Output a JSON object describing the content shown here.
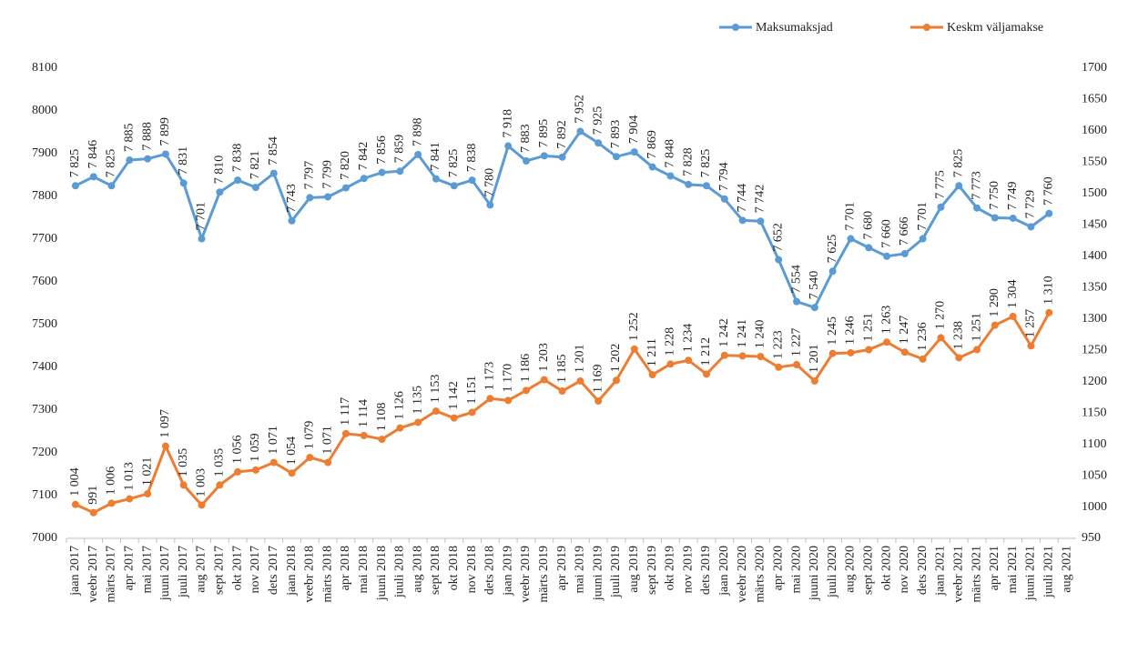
{
  "chart_data": {
    "type": "line",
    "categories": [
      "jaan 2017",
      "veebr 2017",
      "märts 2017",
      "apr 2017",
      "mai 2017",
      "juuni 2017",
      "juuli 2017",
      "aug 2017",
      "sept 2017",
      "okt 2017",
      "nov 2017",
      "dets 2017",
      "jaan 2018",
      "veebr 2018",
      "märts 2018",
      "apr 2018",
      "mai 2018",
      "juuni 2018",
      "juuli 2018",
      "aug 2018",
      "sept 2018",
      "okt 2018",
      "nov 2018",
      "dets 2018",
      "jaan 2019",
      "veebr 2019",
      "märts 2019",
      "apr 2019",
      "mai 2019",
      "juuni 2019",
      "juuli 2019",
      "aug 2019",
      "sept 2019",
      "okt 2019",
      "nov 2019",
      "dets 2019",
      "jaan 2020",
      "veebr 2020",
      "märts 2020",
      "apr 2020",
      "mai 2020",
      "juuni 2020",
      "juuli 2020",
      "aug 2020",
      "sept 2020",
      "okt 2020",
      "nov 2020",
      "dets 2020",
      "jaan 2021",
      "veebr 2021",
      "märts 2021",
      "apr 2021",
      "mai 2021",
      "juuni 2021",
      "juuli 2021",
      "aug 2021"
    ],
    "series": [
      {
        "name": "Maksumaksjad",
        "color": "#5b9bd5",
        "axis": "y",
        "values": [
          7825,
          7846,
          7825,
          7885,
          7888,
          7899,
          7831,
          7701,
          7810,
          7838,
          7821,
          7854,
          7743,
          7797,
          7799,
          7820,
          7842,
          7856,
          7859,
          7898,
          7841,
          7825,
          7838,
          7780,
          7918,
          7883,
          7895,
          7892,
          7952,
          7925,
          7893,
          7904,
          7869,
          7848,
          7828,
          7825,
          7794,
          7744,
          7742,
          7652,
          7554,
          7540,
          7625,
          7701,
          7680,
          7660,
          7666,
          7701,
          7775,
          7825,
          7773,
          7750,
          7749,
          7729,
          7760,
          null
        ],
        "value_labels": [
          "7 825",
          "7 846",
          "7 825",
          "7 885",
          "7 888",
          "7 899",
          "7 831",
          "7 701",
          "7 810",
          "7 838",
          "7 821",
          "7 854",
          "7 743",
          "7 797",
          "7 799",
          "7 820",
          "7 842",
          "7 856",
          "7 859",
          "7 898",
          "7 841",
          "7 825",
          "7 838",
          "7 780",
          "7 918",
          "7 883",
          "7 895",
          "7 892",
          "7 952",
          "7 925",
          "7 893",
          "7 904",
          "7 869",
          "7 848",
          "7 828",
          "7 825",
          "7 794",
          "7 744",
          "7 742",
          "7 652",
          "7 554",
          "7 540",
          "7 625",
          "7 701",
          "7 680",
          "7 660",
          "7 666",
          "7 701",
          "7 775",
          "7 825",
          "7 773",
          "7 750",
          "7 749",
          "7 729",
          "7 760",
          null
        ]
      },
      {
        "name": "Keskm väljamakse",
        "color": "#ed7d31",
        "axis": "y2",
        "values": [
          1004,
          991,
          1006,
          1013,
          1021,
          1097,
          1035,
          1003,
          1035,
          1056,
          1059,
          1071,
          1054,
          1079,
          1071,
          1117,
          1114,
          1108,
          1126,
          1135,
          1153,
          1142,
          1151,
          1173,
          1170,
          1186,
          1203,
          1185,
          1201,
          1169,
          1202,
          1252,
          1211,
          1228,
          1234,
          1212,
          1242,
          1241,
          1240,
          1223,
          1227,
          1201,
          1245,
          1246,
          1251,
          1263,
          1247,
          1236,
          1270,
          1238,
          1251,
          1290,
          1304,
          1257,
          1310,
          null
        ],
        "value_labels": [
          "1 004",
          "991",
          "1 006",
          "1 013",
          "1 021",
          "1 097",
          "1 035",
          "1 003",
          "1 035",
          "1 056",
          "1 059",
          "1 071",
          "1 054",
          "1 079",
          "1 071",
          "1 117",
          "1 114",
          "1 108",
          "1 126",
          "1 135",
          "1 153",
          "1 142",
          "1 151",
          "1 173",
          "1 170",
          "1 186",
          "1 203",
          "1 185",
          "1 201",
          "1 169",
          "1 202",
          "1 252",
          "1 211",
          "1 228",
          "1 234",
          "1 212",
          "1 242",
          "1 241",
          "1 240",
          "1 223",
          "1 227",
          "1 201",
          "1 245",
          "1 246",
          "1 251",
          "1 263",
          "1 247",
          "1 236",
          "1 270",
          "1 238",
          "1 251",
          "1 290",
          "1 304",
          "1 257",
          "1 310",
          null
        ]
      }
    ],
    "ylim": [
      7000,
      8100
    ],
    "yticks": [
      7000,
      7100,
      7200,
      7300,
      7400,
      7500,
      7600,
      7700,
      7800,
      7900,
      8000,
      8100
    ],
    "y2lim": [
      950,
      1700
    ],
    "y2ticks": [
      950,
      1000,
      1050,
      1100,
      1150,
      1200,
      1250,
      1300,
      1350,
      1400,
      1450,
      1500,
      1550,
      1600,
      1650,
      1700
    ],
    "legend": "top-right"
  }
}
